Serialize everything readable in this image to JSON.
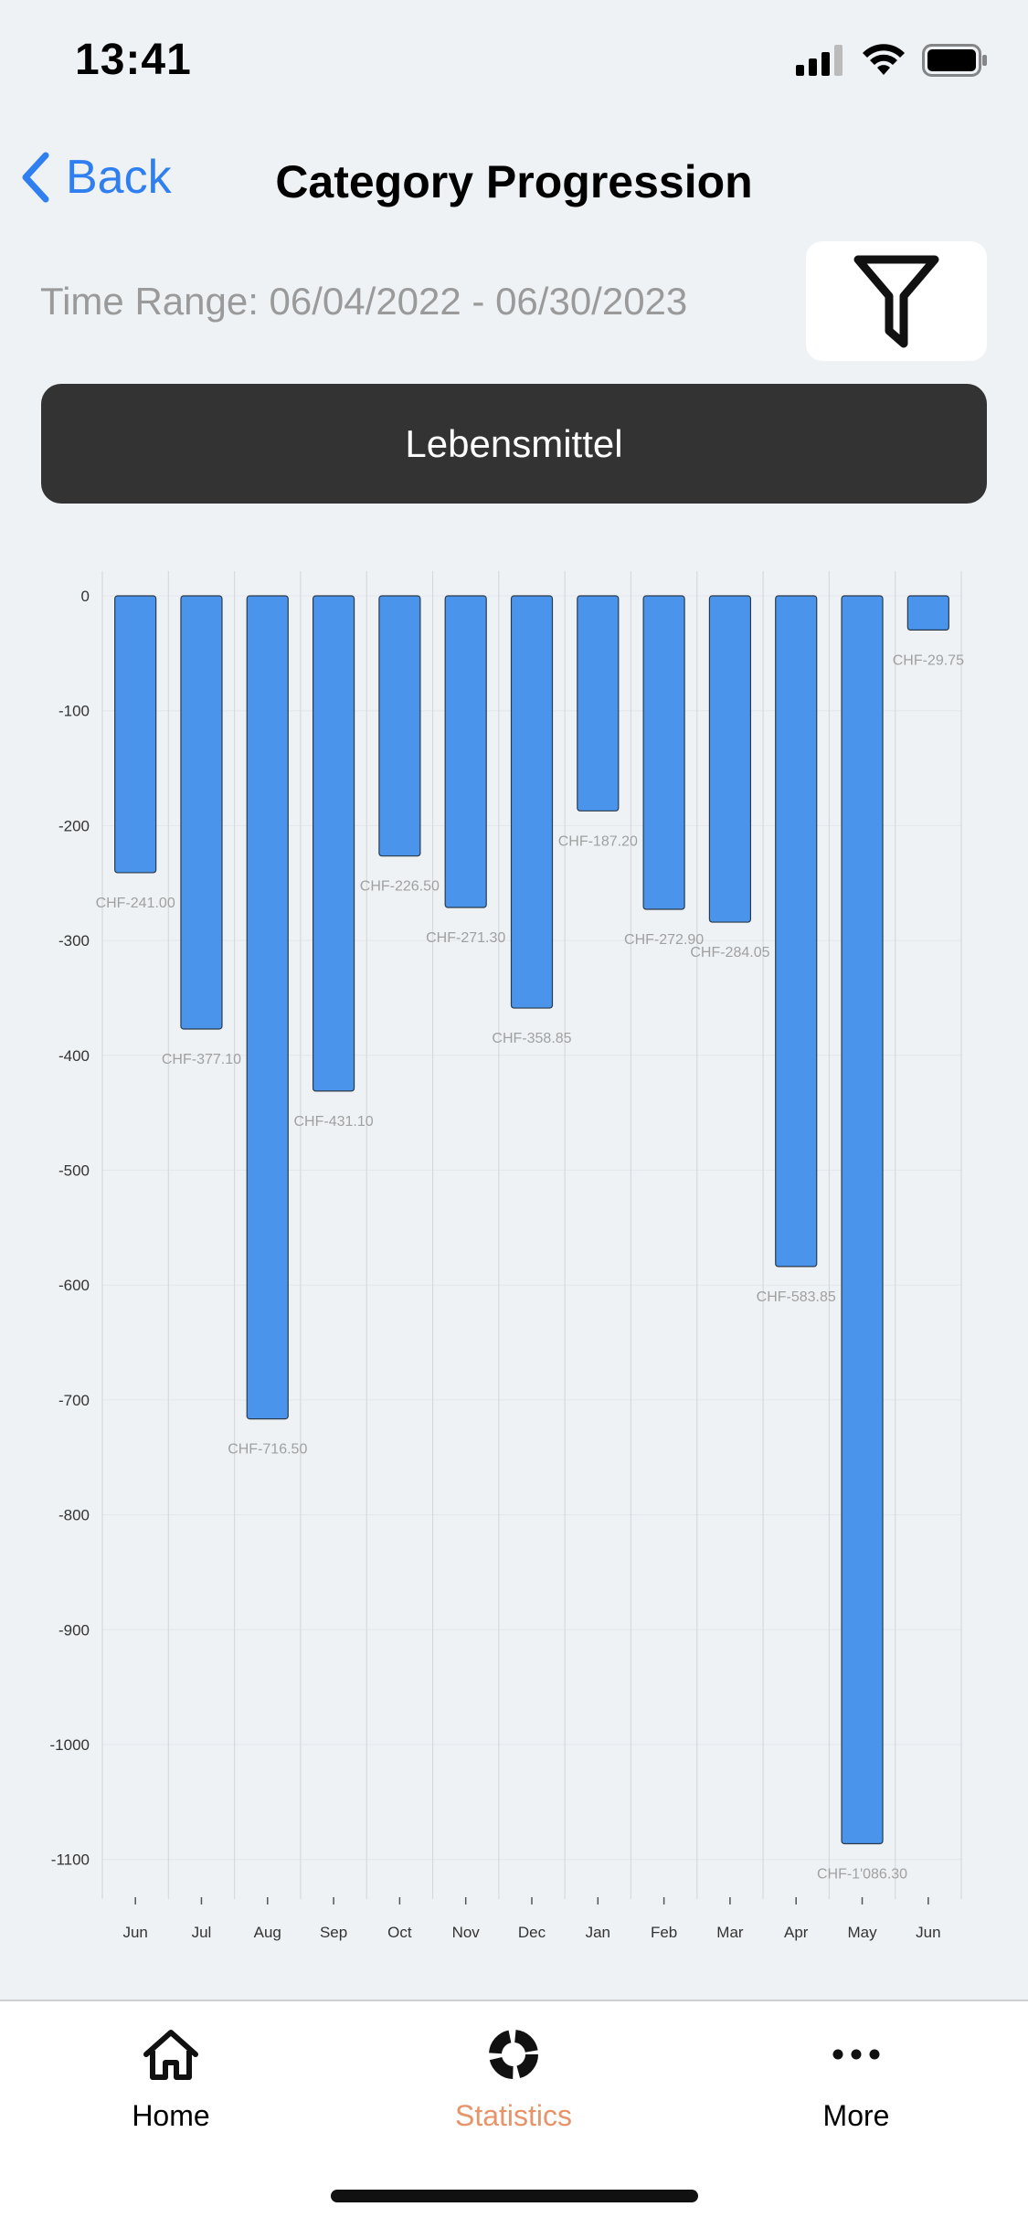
{
  "status_bar": {
    "time": "13:41"
  },
  "nav": {
    "back_label": "Back",
    "title": "Category Progression"
  },
  "time_range": "Time Range: 06/04/2022 - 06/30/2023",
  "category": "Lebensmittel",
  "colors": {
    "bar": "#4a94eb",
    "accent": "#2f7ff0",
    "tab_active": "#e8946a",
    "button_dark": "#333333"
  },
  "chart_data": {
    "type": "bar",
    "categories": [
      "Jun",
      "Jul",
      "Aug",
      "Sep",
      "Oct",
      "Nov",
      "Dec",
      "Jan",
      "Feb",
      "Mar",
      "Apr",
      "May",
      "Jun"
    ],
    "values": [
      -241.0,
      -377.1,
      -716.5,
      -431.1,
      -226.5,
      -271.3,
      -358.85,
      -187.2,
      -272.9,
      -284.05,
      -583.85,
      -1086.3,
      -29.75
    ],
    "data_labels": [
      "CHF-241.00",
      "CHF-377.10",
      "CHF-716.50",
      "CHF-431.10",
      "CHF-226.50",
      "CHF-271.30",
      "CHF-358.85",
      "CHF-187.20",
      "CHF-272.90",
      "CHF-284.05",
      "CHF-583.85",
      "CHF-1'086.30",
      "CHF-29.75"
    ],
    "yticks": [
      0,
      -100,
      -200,
      -300,
      -400,
      -500,
      -600,
      -700,
      -800,
      -900,
      -1000,
      -1100
    ],
    "ylim": [
      -1140,
      0
    ],
    "grid": true,
    "title": "",
    "xlabel": "",
    "ylabel": ""
  },
  "tabs": [
    {
      "label": "Home",
      "icon": "home-icon",
      "active": false
    },
    {
      "label": "Statistics",
      "icon": "statistics-icon",
      "active": true
    },
    {
      "label": "More",
      "icon": "more-icon",
      "active": false
    }
  ]
}
